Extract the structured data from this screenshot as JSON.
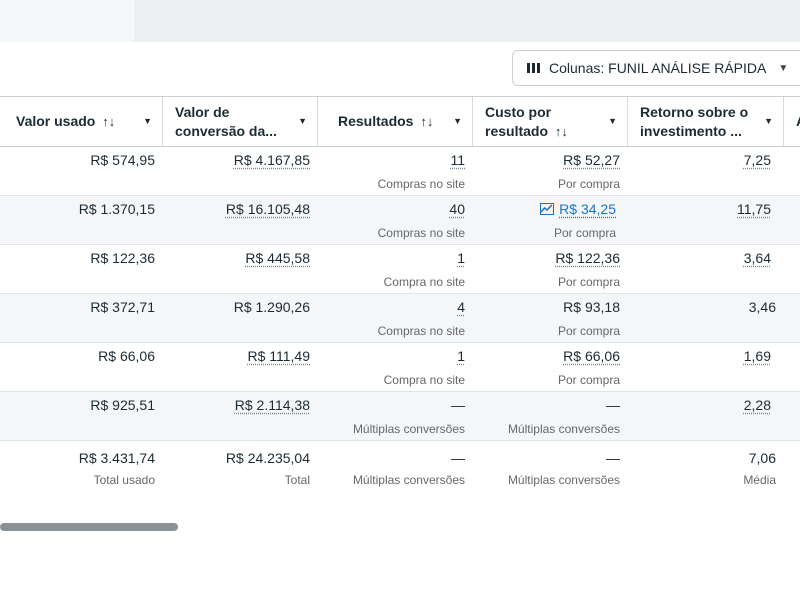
{
  "columns_button": {
    "icon": "columns-icon",
    "label": "Colunas: FUNIL ANÁLISE RÁPIDA"
  },
  "headers": [
    {
      "line1": "Valor usado",
      "line2": "",
      "sort": "↑↓"
    },
    {
      "line1": "Valor de",
      "line2": "conversão da...",
      "sort": ""
    },
    {
      "line1": "Resultados",
      "line2": "",
      "sort": "↑↓"
    },
    {
      "line1": "Custo por",
      "line2": "resultado",
      "sort": "↑↓"
    },
    {
      "line1": "Retorno sobre o",
      "line2": "investimento ...",
      "sort": ""
    },
    {
      "line1": "A",
      "line2": "",
      "sort": ""
    }
  ],
  "rows": [
    {
      "spend": "R$ 574,95",
      "conversion_value": "R$ 4.167,85",
      "results": "11",
      "results_label": "Compras no site",
      "cost": "R$ 52,27",
      "cost_label": "Por compra",
      "roas": "7,25"
    },
    {
      "spend": "R$ 1.370,15",
      "conversion_value": "R$ 16.105,48",
      "results": "40",
      "results_label": "Compras no site",
      "cost": "R$ 34,25",
      "cost_label": "Por compra",
      "roas": "11,75"
    },
    {
      "spend": "R$ 122,36",
      "conversion_value": "R$ 445,58",
      "results": "1",
      "results_label": "Compra no site",
      "cost": "R$ 122,36",
      "cost_label": "Por compra",
      "roas": "3,64"
    },
    {
      "spend": "R$ 372,71",
      "conversion_value": "R$ 1.290,26",
      "results": "4",
      "results_label": "Compras no site",
      "cost": "R$ 93,18",
      "cost_label": "Por compra",
      "roas": "3,46"
    },
    {
      "spend": "R$ 66,06",
      "conversion_value": "R$ 111,49",
      "results": "1",
      "results_label": "Compra no site",
      "cost": "R$ 66,06",
      "cost_label": "Por compra",
      "roas": "1,69"
    },
    {
      "spend": "R$ 925,51",
      "conversion_value": "R$ 2.114,38",
      "results": "—",
      "results_label": "Múltiplas conversões",
      "cost": "—",
      "cost_label": "Múltiplas conversões",
      "roas": "2,28"
    }
  ],
  "totals": {
    "spend": "R$ 3.431,74",
    "spend_label": "Total usado",
    "conversion_value": "R$ 24.235,04",
    "conversion_label": "Total",
    "results": "—",
    "results_label": "Múltiplas conversões",
    "cost": "—",
    "cost_label": "Múltiplas conversões",
    "roas": "7,06",
    "roas_label": "Média"
  },
  "trend_icon": "trend-chart-icon",
  "colors": {
    "link": "#1a73c7",
    "alt_row": "#f5f6f7",
    "scrollbar": "#8c9196"
  }
}
